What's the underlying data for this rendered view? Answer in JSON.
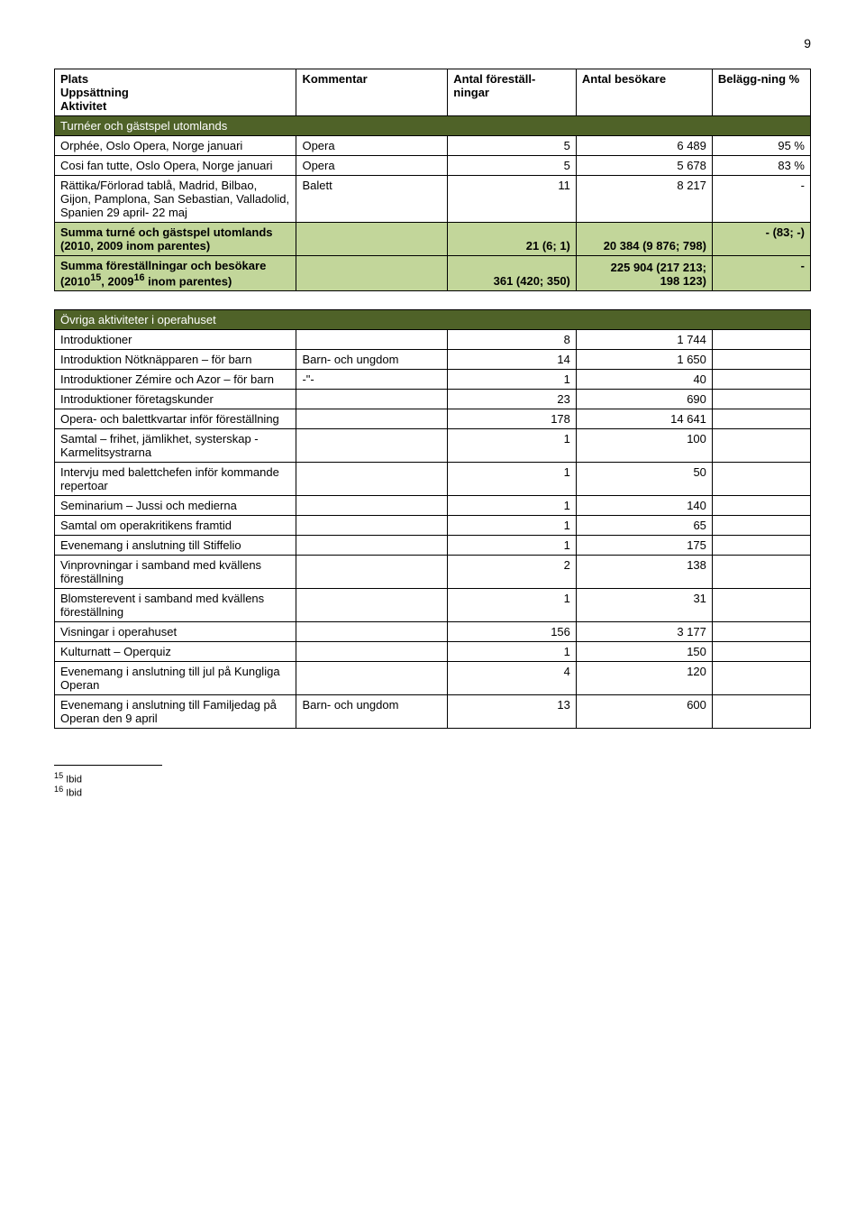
{
  "page_number": "9",
  "headers": {
    "plats": "Plats\nUppsättning\nAktivitet",
    "kommentar": "Kommentar",
    "antal_f": "Antal föreställ-ningar",
    "antal_b": "Antal besökare",
    "belagg": "Belägg-ning %"
  },
  "section1_title": "Turnéer och gästspel utomlands",
  "rows1": [
    {
      "label": "Orphée, Oslo Opera, Norge januari",
      "kom": "Opera",
      "af": "5",
      "ab": "6 489",
      "bg": "95 %"
    },
    {
      "label": "Cosi fan tutte, Oslo Opera, Norge januari",
      "kom": "Opera",
      "af": "5",
      "ab": "5 678",
      "bg": "83 %"
    },
    {
      "label": "Rättika/Förlorad tablå, Madrid, Bilbao, Gijon, Pamplona, San Sebastian, Valladolid, Spanien 29 april- 22 maj",
      "kom": "Balett",
      "af": "11",
      "ab": "8 217",
      "bg": "-"
    }
  ],
  "summary1": {
    "label": "Summa turné och gästspel utomlands (2010, 2009 inom parentes)",
    "af": "21 (6; 1)",
    "ab": "20 384 (9 876; 798)",
    "bg": "- (83; -)"
  },
  "summary2": {
    "label_pre": "Summa föreställningar och besökare (2010",
    "sup1": "15",
    "label_mid": ", 2009",
    "sup2": "16",
    "label_post": " inom parentes)",
    "af": "361 (420; 350)",
    "ab": "225 904 (217 213;\n198 123)",
    "bg": "-"
  },
  "section2_title": "Övriga aktiviteter i operahuset",
  "rows2": [
    {
      "label": "Introduktioner",
      "kom": "",
      "af": "8",
      "ab": "1 744",
      "bg": ""
    },
    {
      "label": "Introduktion Nötknäpparen – för barn",
      "kom": "Barn- och ungdom",
      "af": "14",
      "ab": "1 650",
      "bg": ""
    },
    {
      "label": "Introduktioner Zémire och Azor – för barn",
      "kom": "-\"-",
      "af": "1",
      "ab": "40",
      "bg": ""
    },
    {
      "label": "Introduktioner företagskunder",
      "kom": "",
      "af": "23",
      "ab": "690",
      "bg": ""
    },
    {
      "label": "Opera- och balettkvartar inför föreställning",
      "kom": "",
      "af": "178",
      "ab": "14 641",
      "bg": ""
    },
    {
      "label": "Samtal – frihet, jämlikhet, systerskap - Karmelitsystrarna",
      "kom": "",
      "af": "1",
      "ab": "100",
      "bg": ""
    },
    {
      "label": "Intervju med balettchefen inför kommande repertoar",
      "kom": "",
      "af": "1",
      "ab": "50",
      "bg": ""
    },
    {
      "label": "Seminarium – Jussi och medierna",
      "kom": "",
      "af": "1",
      "ab": "140",
      "bg": ""
    },
    {
      "label": "Samtal om operakritikens framtid",
      "kom": "",
      "af": "1",
      "ab": "65",
      "bg": ""
    },
    {
      "label": "Evenemang i anslutning till Stiffelio",
      "kom": "",
      "af": "1",
      "ab": "175",
      "bg": ""
    },
    {
      "label": "Vinprovningar i samband med kvällens föreställning",
      "kom": "",
      "af": "2",
      "ab": "138",
      "bg": ""
    },
    {
      "label": "Blomsterevent i samband med kvällens föreställning",
      "kom": "",
      "af": "1",
      "ab": "31",
      "bg": ""
    },
    {
      "label": "Visningar i operahuset",
      "kom": "",
      "af": "156",
      "ab": "3 177",
      "bg": ""
    },
    {
      "label": "Kulturnatt – Operquiz",
      "kom": "",
      "af": "1",
      "ab": "150",
      "bg": ""
    },
    {
      "label": "Evenemang i anslutning till jul på Kungliga Operan",
      "kom": "",
      "af": "4",
      "ab": "120",
      "bg": ""
    },
    {
      "label": "Evenemang i anslutning till Familjedag på Operan den 9 april",
      "kom": "Barn- och ungdom",
      "af": "13",
      "ab": "600",
      "bg": ""
    }
  ],
  "footnotes": {
    "n15": "Ibid",
    "n16": "Ibid"
  }
}
